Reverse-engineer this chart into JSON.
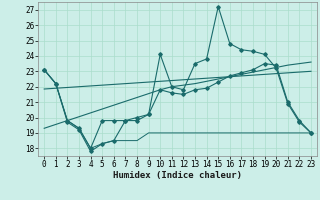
{
  "title": "",
  "xlabel": "Humidex (Indice chaleur)",
  "bg_color": "#cceee8",
  "grid_color": "#aaddcc",
  "line_color": "#1a6b6b",
  "x": [
    0,
    1,
    2,
    3,
    4,
    5,
    6,
    7,
    8,
    9,
    10,
    11,
    12,
    13,
    14,
    15,
    16,
    17,
    18,
    19,
    20,
    21,
    22,
    23
  ],
  "y_spiky": [
    23.1,
    22.2,
    19.7,
    19.2,
    17.8,
    18.3,
    18.5,
    19.8,
    19.8,
    20.2,
    24.1,
    22.0,
    21.8,
    23.5,
    23.8,
    27.2,
    24.8,
    24.4,
    24.3,
    24.1,
    23.2,
    20.9,
    19.7,
    19.0
  ],
  "y_flat": [
    23.1,
    22.2,
    19.8,
    19.3,
    18.0,
    18.3,
    18.5,
    18.5,
    18.5,
    19.0,
    19.0,
    19.0,
    19.0,
    19.0,
    19.0,
    19.0,
    19.0,
    19.0,
    19.0,
    19.0,
    19.0,
    19.0,
    19.0,
    19.0
  ],
  "y_smooth": [
    23.1,
    22.2,
    19.8,
    19.3,
    18.0,
    19.8,
    19.8,
    19.8,
    20.0,
    20.2,
    21.8,
    21.6,
    21.5,
    21.8,
    21.9,
    22.3,
    22.7,
    22.9,
    23.1,
    23.5,
    23.4,
    21.0,
    19.8,
    19.0
  ],
  "y_trend_low": [
    19.3,
    19.55,
    19.8,
    20.05,
    20.3,
    20.55,
    20.8,
    21.05,
    21.3,
    21.55,
    21.8,
    22.0,
    22.1,
    22.2,
    22.35,
    22.5,
    22.65,
    22.8,
    22.95,
    23.1,
    23.25,
    23.4,
    23.5,
    23.6
  ],
  "y_trend_high": [
    21.85,
    21.9,
    21.95,
    22.0,
    22.05,
    22.1,
    22.15,
    22.2,
    22.25,
    22.3,
    22.35,
    22.4,
    22.45,
    22.5,
    22.55,
    22.6,
    22.65,
    22.7,
    22.75,
    22.8,
    22.85,
    22.9,
    22.95,
    23.0
  ],
  "ylim": [
    17.5,
    27.5
  ],
  "xlim": [
    -0.5,
    23.5
  ],
  "yticks": [
    18,
    19,
    20,
    21,
    22,
    23,
    24,
    25,
    26,
    27
  ],
  "xticks": [
    0,
    1,
    2,
    3,
    4,
    5,
    6,
    7,
    8,
    9,
    10,
    11,
    12,
    13,
    14,
    15,
    16,
    17,
    18,
    19,
    20,
    21,
    22,
    23
  ],
  "tick_fontsize": 5.5,
  "xlabel_fontsize": 6.5
}
